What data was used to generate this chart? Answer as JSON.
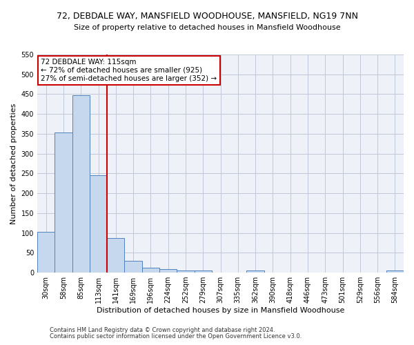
{
  "title1": "72, DEBDALE WAY, MANSFIELD WOODHOUSE, MANSFIELD, NG19 7NN",
  "title2": "Size of property relative to detached houses in Mansfield Woodhouse",
  "xlabel": "Distribution of detached houses by size in Mansfield Woodhouse",
  "ylabel": "Number of detached properties",
  "footer1": "Contains HM Land Registry data © Crown copyright and database right 2024.",
  "footer2": "Contains public sector information licensed under the Open Government Licence v3.0.",
  "categories": [
    "30sqm",
    "58sqm",
    "85sqm",
    "113sqm",
    "141sqm",
    "169sqm",
    "196sqm",
    "224sqm",
    "252sqm",
    "279sqm",
    "307sqm",
    "335sqm",
    "362sqm",
    "390sqm",
    "418sqm",
    "446sqm",
    "473sqm",
    "501sqm",
    "529sqm",
    "556sqm",
    "584sqm"
  ],
  "values": [
    103,
    353,
    448,
    245,
    88,
    30,
    13,
    9,
    5,
    5,
    0,
    0,
    5,
    0,
    0,
    0,
    0,
    0,
    0,
    0,
    5
  ],
  "bar_color": "#c5d8ed",
  "bar_edge_color": "#4f81bd",
  "grid_color": "#c0c8d8",
  "background_color": "#eef2f8",
  "red_line_x": 3.5,
  "annotation_line1": "72 DEBDALE WAY: 115sqm",
  "annotation_line2": "← 72% of detached houses are smaller (925)",
  "annotation_line3": "27% of semi-detached houses are larger (352) →",
  "annotation_box_color": "#ffffff",
  "annotation_box_edge": "#cc0000",
  "red_line_color": "#cc0000",
  "ylim": [
    0,
    550
  ],
  "yticks": [
    0,
    50,
    100,
    150,
    200,
    250,
    300,
    350,
    400,
    450,
    500,
    550
  ],
  "title1_fontsize": 9,
  "title2_fontsize": 8,
  "ylabel_fontsize": 8,
  "xlabel_fontsize": 8,
  "tick_fontsize": 7,
  "footer_fontsize": 6
}
